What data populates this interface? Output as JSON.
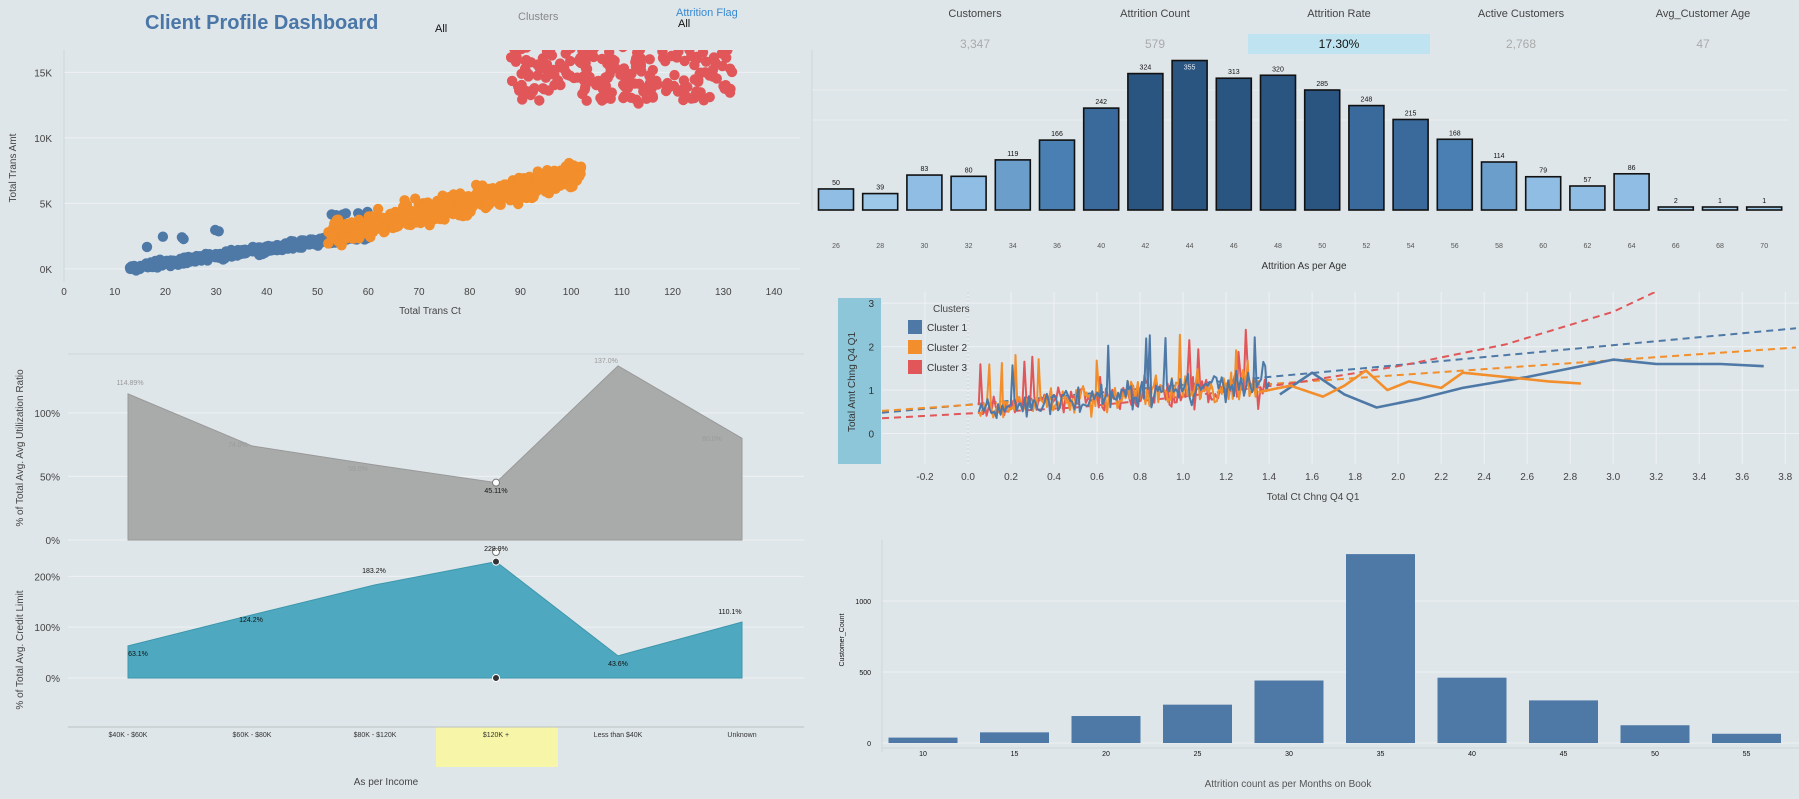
{
  "header": {
    "title": "Client Profile Dashboard",
    "clusters_filter_label": "Clusters",
    "clusters_filter_value": "All",
    "attrition_filter_label": "Attrition Flag",
    "attrition_filter_value": "All"
  },
  "kpis": [
    {
      "label": "Customers",
      "value": "3,347"
    },
    {
      "label": "Attrition Count",
      "value": "579"
    },
    {
      "label": "Attrition Rate",
      "value": "17.30%"
    },
    {
      "label": "Active Customers",
      "value": "2,768"
    },
    {
      "label": "Avg_Customer Age",
      "value": "47"
    }
  ],
  "colors": {
    "cluster1": "#4e79a7",
    "cluster2": "#f28e2b",
    "cluster3": "#e15759",
    "bar_dark": "#2b5581",
    "bar_light": "#9dc8e8",
    "area_gray": "#a9abab",
    "area_teal": "#4ea8bf"
  },
  "chart_data": [
    {
      "type": "scatter",
      "xlabel": "Total Trans Ct",
      "ylabel": "Total Trans Amt",
      "x_ticks": [
        "0",
        "10",
        "20",
        "30",
        "40",
        "50",
        "60",
        "70",
        "80",
        "90",
        "100",
        "110",
        "120",
        "130",
        "140"
      ],
      "y_ticks": [
        "0K",
        "5K",
        "10K",
        "15K"
      ],
      "xlim": [
        0,
        140
      ],
      "ylim": [
        -1000,
        19000
      ],
      "series": [
        {
          "name": "Cluster 1",
          "x_range": [
            12,
            62
          ],
          "y_range": [
            0,
            3500
          ]
        },
        {
          "name": "Cluster 2",
          "x_range": [
            52,
            110
          ],
          "y_range": [
            2500,
            10500
          ]
        },
        {
          "name": "Cluster 3",
          "x_range": [
            88,
            132
          ],
          "y_range": [
            12500,
            17800
          ]
        }
      ]
    },
    {
      "type": "bar",
      "xlabel": "Attrition As per Age",
      "categories": [
        "26",
        "28",
        "30",
        "32",
        "34",
        "36",
        "40",
        "42",
        "44",
        "46",
        "48",
        "50",
        "52",
        "54",
        "56",
        "58",
        "60",
        "62",
        "64",
        "66",
        "68",
        "70"
      ],
      "values": [
        50,
        39,
        83,
        80,
        119,
        166,
        242,
        324,
        355,
        313,
        320,
        285,
        248,
        215,
        168,
        114,
        79,
        57,
        86,
        2,
        1,
        1
      ],
      "ylim": [
        0,
        380
      ]
    },
    {
      "type": "area",
      "ylabel": "% of Total Avg. Avg Utilization Ratio",
      "categories": [
        "$40K - $60K",
        "$60K - $80K",
        "$80K - $120K",
        "$120K +",
        "Less than $40K",
        "Unknown"
      ],
      "values": [
        114.89,
        74.0,
        59.0,
        45.11,
        137.0,
        80.0
      ],
      "labels": [
        "114.89%",
        "74.0%",
        "59.0%",
        "45.11%",
        "137.0%",
        "80.0%"
      ],
      "y_ticks": [
        "0%",
        "50%",
        "100%"
      ],
      "ylim": [
        0,
        140
      ]
    },
    {
      "type": "area",
      "ylabel": "% of Total Avg. Credit Limit",
      "xlabel": "As per Income",
      "categories": [
        "$40K - $60K",
        "$60K - $80K",
        "$80K - $120K",
        "$120K +",
        "Less than $40K",
        "Unknown"
      ],
      "values": [
        63.1,
        124.2,
        183.2,
        228.9,
        43.6,
        110.1
      ],
      "labels": [
        "63.1%",
        "124.2%",
        "183.2%",
        "228.9%",
        "43.6%",
        "110.1%"
      ],
      "y_ticks": [
        "0%",
        "100%",
        "200%"
      ],
      "ylim": [
        0,
        240
      ],
      "highlighted_category": "$120K +"
    },
    {
      "type": "line",
      "xlabel": "Total Ct Chng Q4 Q1",
      "ylabel": "Total Amt Chng Q4 Q1",
      "legend_title": "Clusters",
      "legend": [
        "Cluster 1",
        "Cluster 2",
        "Cluster 3"
      ],
      "legend_position": "top-left",
      "x_ticks": [
        "-0.2",
        "0.0",
        "0.2",
        "0.4",
        "0.6",
        "0.8",
        "1.0",
        "1.2",
        "1.4",
        "1.6",
        "1.8",
        "2.0",
        "2.2",
        "2.4",
        "2.6",
        "2.8",
        "3.0",
        "3.2",
        "3.4",
        "3.6",
        "3.8"
      ],
      "y_ticks": [
        "0",
        "1",
        "2",
        "3"
      ],
      "xlim": [
        -0.4,
        3.85
      ],
      "ylim": [
        -0.7,
        3.6
      ],
      "series": [
        {
          "name": "Cluster 1",
          "x": [
            1.45,
            1.6,
            1.75,
            1.9,
            2.1,
            2.3,
            2.6,
            2.9,
            3.0,
            3.2,
            3.5,
            3.7
          ],
          "y": [
            0.9,
            1.4,
            0.9,
            0.6,
            0.8,
            1.05,
            1.3,
            1.6,
            1.7,
            1.6,
            1.6,
            1.55
          ]
        },
        {
          "name": "Cluster 2",
          "x": [
            1.35,
            1.5,
            1.65,
            1.75,
            1.85,
            1.95,
            2.05,
            2.2,
            2.3,
            2.5,
            2.7,
            2.85
          ],
          "y": [
            0.95,
            1.1,
            0.85,
            1.1,
            1.45,
            1.0,
            1.2,
            1.05,
            1.4,
            1.3,
            1.2,
            1.15
          ]
        },
        {
          "name": "Cluster 3",
          "x": [
            0.05,
            0.3,
            0.6,
            0.9,
            1.1,
            1.3,
            1.4
          ],
          "y": [
            0.2,
            0.5,
            0.8,
            1.1,
            0.9,
            0.8,
            1.0
          ]
        }
      ],
      "trend_lines": [
        {
          "name": "Cluster 1",
          "x": [
            -0.4,
            3.85
          ],
          "y": [
            0.48,
            2.42
          ]
        },
        {
          "name": "Cluster 2",
          "x": [
            -0.4,
            3.85
          ],
          "y": [
            0.52,
            1.98
          ]
        },
        {
          "name": "Cluster 3",
          "x": [
            -0.4,
            0.5,
            1.0,
            1.5,
            2.0,
            2.5,
            3.0,
            3.3
          ],
          "y": [
            0.35,
            0.6,
            0.85,
            1.15,
            1.55,
            2.05,
            2.8,
            3.5
          ]
        }
      ]
    },
    {
      "type": "bar",
      "xlabel": "Attrition count as per Months on Book",
      "ylabel": "Customer_Count",
      "categories": [
        "10",
        "15",
        "20",
        "25",
        "30",
        "35",
        "40",
        "45",
        "50",
        "55"
      ],
      "values": [
        38,
        75,
        190,
        270,
        440,
        1330,
        460,
        300,
        125,
        65
      ],
      "y_ticks": [
        "0",
        "500",
        "1000"
      ],
      "ylim": [
        0,
        1380
      ]
    }
  ]
}
